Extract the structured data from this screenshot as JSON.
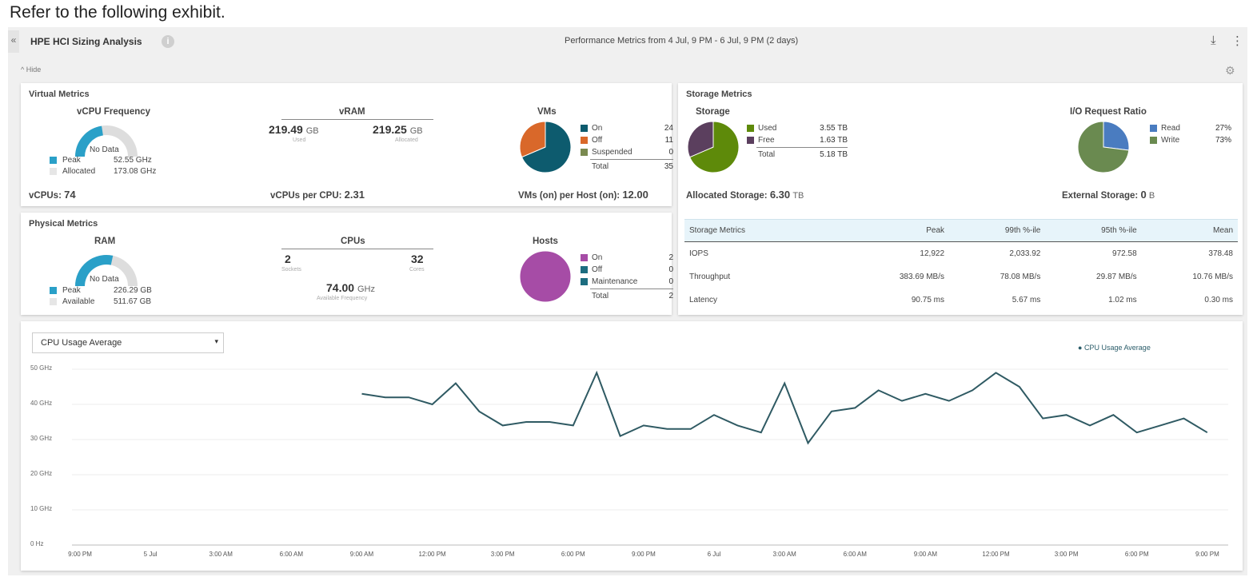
{
  "caption": "Refer to the following exhibit.",
  "header": {
    "collapse_glyph": "«",
    "title": "HPE HCI Sizing Analysis",
    "info_glyph": "i",
    "performance_range": "Performance Metrics from 4 Jul, 9 PM - 6 Jul, 9 PM (2 days)",
    "download_icon": "download-icon",
    "menu_icon": "more-icon",
    "hide_label": "^ Hide"
  },
  "virtual": {
    "title": "Virtual Metrics",
    "vcpu": {
      "title": "vCPU Frequency",
      "no_data": "No Data",
      "peak_label": "Peak",
      "peak_value": "52.55 GHz",
      "allocated_label": "Allocated",
      "allocated_value": "173.08 GHz",
      "vcpus_label": "vCPUs:",
      "vcpus_value": "74"
    },
    "vram": {
      "title": "vRAM",
      "used_value": "219.49",
      "used_unit": "GB",
      "used_caption": "Used",
      "allocated_value": "219.25",
      "allocated_unit": "GB",
      "allocated_caption": "Allocated",
      "vcpus_per_cpu_label": "vCPUs per CPU:",
      "vcpus_per_cpu_value": "2.31"
    },
    "vms": {
      "title": "VMs",
      "items": [
        {
          "label": "On",
          "value": "24",
          "color": "#0d5b6e"
        },
        {
          "label": "Off",
          "value": "11",
          "color": "#d9682a"
        },
        {
          "label": "Suspended",
          "value": "0",
          "color": "#7a8a50"
        }
      ],
      "total_label": "Total",
      "total_value": "35",
      "per_host_label": "VMs (on) per Host (on):",
      "per_host_value": "12.00",
      "pie": [
        24,
        11,
        0
      ]
    }
  },
  "physical": {
    "title": "Physical Metrics",
    "ram": {
      "title": "RAM",
      "no_data": "No Data",
      "peak_label": "Peak",
      "peak_value": "226.29 GB",
      "available_label": "Available",
      "available_value": "511.67 GB"
    },
    "cpus": {
      "title": "CPUs",
      "sockets_value": "2",
      "sockets_caption": "Sockets",
      "cores_value": "32",
      "cores_caption": "Cores",
      "freq_value": "74.00",
      "freq_unit": "GHz",
      "freq_caption": "Available Frequency"
    },
    "hosts": {
      "title": "Hosts",
      "items": [
        {
          "label": "On",
          "value": "2",
          "color": "#a64ca6"
        },
        {
          "label": "Off",
          "value": "0",
          "color": "#1c6d80"
        },
        {
          "label": "Maintenance",
          "value": "0",
          "color": "#1c6d80"
        }
      ],
      "total_label": "Total",
      "total_value": "2",
      "pie": [
        2,
        0,
        0
      ]
    }
  },
  "storage": {
    "title": "Storage Metrics",
    "storage_title": "Storage",
    "items": [
      {
        "label": "Used",
        "value": "3.55 TB",
        "color": "#5e8a0a"
      },
      {
        "label": "Free",
        "value": "1.63 TB",
        "color": "#5b3f5e"
      }
    ],
    "total_label": "Total",
    "total_value": "5.18 TB",
    "pie": [
      3.55,
      1.63
    ],
    "allocated_label": "Allocated Storage:",
    "allocated_value": "6.30",
    "allocated_unit": "TB",
    "io_title": "I/O Request Ratio",
    "io_items": [
      {
        "label": "Read",
        "value": "27%",
        "color": "#4a7cc0"
      },
      {
        "label": "Write",
        "value": "73%",
        "color": "#6a8a50"
      }
    ],
    "io_pie": [
      27,
      73
    ],
    "external_label": "External Storage:",
    "external_value": "0",
    "external_unit": "B",
    "table": {
      "headers": [
        "Storage Metrics",
        "Peak",
        "99th %-ile",
        "95th %-ile",
        "Mean"
      ],
      "rows": [
        [
          "IOPS",
          "12,922",
          "2,033.92",
          "972.58",
          "378.48"
        ],
        [
          "Throughput",
          "383.69 MB/s",
          "78.08 MB/s",
          "29.87 MB/s",
          "10.76 MB/s"
        ],
        [
          "Latency",
          "90.75 ms",
          "5.67 ms",
          "1.02 ms",
          "0.30 ms"
        ]
      ]
    }
  },
  "chart_select": {
    "value": "CPU Usage Average",
    "caret": "▾"
  },
  "chart_data": {
    "type": "line",
    "legend": "CPU Usage Average",
    "ylabel": "",
    "xlabel": "",
    "y_ticks": [
      "50 GHz",
      "40 GHz",
      "30 GHz",
      "20 GHz",
      "10 GHz",
      "0 Hz"
    ],
    "ylim": [
      0,
      50
    ],
    "x_ticks": [
      "9:00 PM",
      "5 Jul",
      "3:00 AM",
      "6:00 AM",
      "9:00 AM",
      "12:00 PM",
      "3:00 PM",
      "6:00 PM",
      "9:00 PM",
      "6 Jul",
      "3:00 AM",
      "6:00 AM",
      "9:00 AM",
      "12:00 PM",
      "3:00 PM",
      "6:00 PM",
      "9:00 PM"
    ],
    "series": [
      {
        "name": "CPU Usage Average",
        "color": "#2f5a63",
        "hours": [
          12,
          13,
          14,
          15,
          16,
          17,
          18,
          19,
          20,
          21,
          22,
          23,
          24,
          25,
          26,
          27,
          28,
          29,
          30,
          31,
          32,
          33,
          34,
          35,
          36,
          37,
          38,
          39,
          40,
          41,
          42,
          43,
          44,
          45,
          46,
          47,
          48
        ],
        "values": [
          43,
          42,
          42,
          40,
          46,
          38,
          34,
          35,
          35,
          34,
          49,
          31,
          34,
          33,
          33,
          37,
          34,
          32,
          46,
          29,
          38,
          39,
          44,
          41,
          43,
          41,
          44,
          49,
          45,
          36,
          37,
          34,
          37,
          32,
          34,
          36,
          32
        ]
      }
    ]
  }
}
